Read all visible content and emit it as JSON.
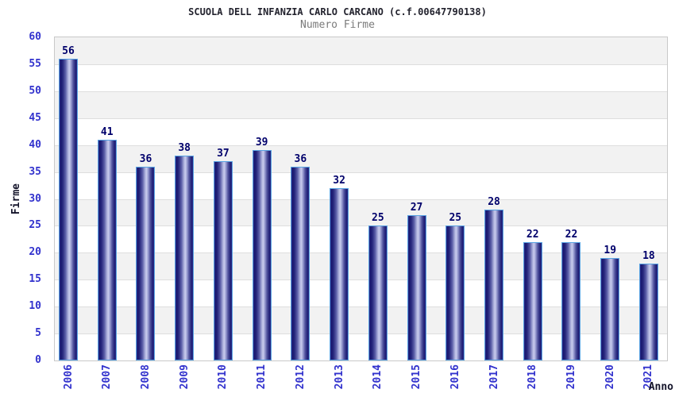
{
  "chart_data": {
    "type": "bar",
    "title": "SCUOLA DELL INFANZIA CARLO CARCANO (c.f.00647790138)",
    "subtitle": "Numero Firme",
    "xlabel": "Anno",
    "ylabel": "Firme",
    "categories": [
      "2006",
      "2007",
      "2008",
      "2009",
      "2010",
      "2011",
      "2012",
      "2013",
      "2014",
      "2015",
      "2016",
      "2017",
      "2018",
      "2019",
      "2020",
      "2021"
    ],
    "values": [
      56,
      41,
      36,
      38,
      37,
      39,
      36,
      32,
      25,
      27,
      25,
      28,
      22,
      22,
      19,
      18
    ],
    "ylim": [
      0,
      60
    ],
    "ytick_step": 5,
    "legend_position": "none",
    "grid": "horizontal gridlines every 5 units with alternating gray bands",
    "tick_label_rotation_deg": -90
  },
  "colors": {
    "tick_label_blue": "#3232cd",
    "value_label_navy": "#00006b",
    "title_color": "#23232e",
    "subtitle_gray": "#7b7b7b",
    "axis_title_color": "#14142a",
    "band_gray": "#f2f2f2",
    "gridline_gray": "#dedede",
    "plot_border_gray": "#c9c9c9",
    "bar_outline_lightblue": "#57a2e2",
    "bar_dark_navy": "#17176e",
    "bar_light_center": "#cacdee",
    "background": "#ffffff"
  }
}
